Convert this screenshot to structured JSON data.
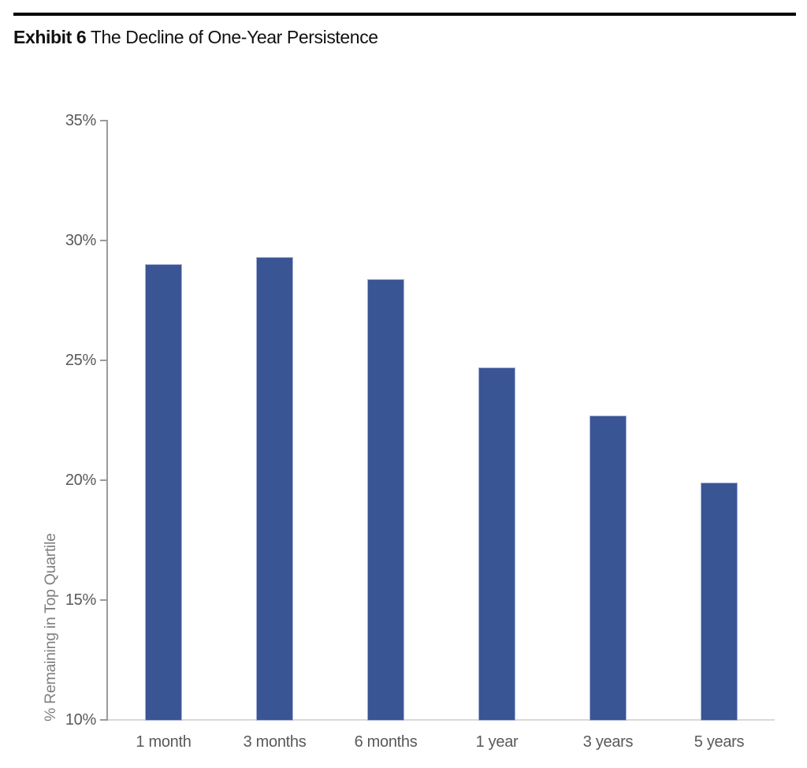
{
  "header": {
    "exhibit_label": "Exhibit 6",
    "title": "The Decline of One-Year Persistence"
  },
  "chart_data": {
    "type": "bar",
    "title": "Exhibit 6 The Decline of One-Year Persistence",
    "categories": [
      "1 month",
      "3 months",
      "6 months",
      "1 year",
      "3 years",
      "5 years"
    ],
    "values": [
      29.0,
      29.3,
      28.4,
      24.7,
      22.7,
      19.9
    ],
    "xlabel": "",
    "ylabel": "% Remaining in Top Quartile",
    "ylim": [
      10,
      35
    ],
    "yticks": [
      35,
      30,
      25,
      20,
      15,
      10
    ],
    "ytick_suffix": "%",
    "grid": false,
    "legend": false,
    "colors": {
      "bar_fill": "#3A5594",
      "bar_edge": "#A6B2D5",
      "y_axis_line": "#9B9B9B",
      "x_axis_line": "#D9D9D9",
      "tick_label": "#595959",
      "axis_title": "#7F7F7F",
      "title_text": "#111111",
      "rule": "#000000"
    }
  }
}
